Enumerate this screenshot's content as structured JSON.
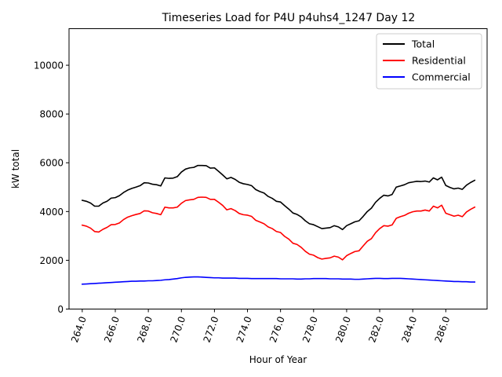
{
  "chart_data": {
    "type": "line",
    "title": "Timeseries Load for P4U p4uhs4_1247  Day 12",
    "xlabel": "Hour of Year",
    "ylabel": "kW total",
    "xlim": [
      263.2,
      288.5
    ],
    "ylim": [
      0,
      11500
    ],
    "x_ticks": [
      264,
      266,
      268,
      270,
      272,
      274,
      276,
      278,
      280,
      282,
      284,
      286
    ],
    "x_tick_labels": [
      "264.0",
      "266.0",
      "268.0",
      "270.0",
      "272.0",
      "274.0",
      "276.0",
      "278.0",
      "280.0",
      "282.0",
      "284.0",
      "286.0"
    ],
    "y_ticks": [
      0,
      2000,
      4000,
      6000,
      8000,
      10000
    ],
    "y_tick_labels": [
      "0",
      "2000",
      "4000",
      "6000",
      "8000",
      "10000"
    ],
    "legend_position": "top-right",
    "x_start": 264.0,
    "x_step": 0.25,
    "series": [
      {
        "name": "Total",
        "color": "#000000",
        "values": [
          4460,
          4420,
          4350,
          4220,
          4220,
          4350,
          4420,
          4550,
          4570,
          4650,
          4780,
          4880,
          4950,
          5000,
          5060,
          5180,
          5170,
          5120,
          5100,
          5050,
          5380,
          5360,
          5370,
          5430,
          5620,
          5740,
          5790,
          5810,
          5890,
          5890,
          5880,
          5780,
          5790,
          5650,
          5500,
          5340,
          5400,
          5320,
          5200,
          5140,
          5110,
          5060,
          4900,
          4820,
          4760,
          4620,
          4540,
          4420,
          4390,
          4240,
          4100,
          3940,
          3880,
          3780,
          3620,
          3500,
          3460,
          3380,
          3300,
          3320,
          3340,
          3420,
          3370,
          3260,
          3420,
          3500,
          3580,
          3620,
          3800,
          4000,
          4140,
          4380,
          4540,
          4670,
          4640,
          4700,
          5000,
          5050,
          5100,
          5180,
          5210,
          5240,
          5230,
          5250,
          5210,
          5380,
          5300,
          5410,
          5070,
          4990,
          4930,
          4960,
          4910,
          5080,
          5190,
          5280
        ]
      },
      {
        "name": "Residential",
        "color": "#ff0000",
        "values": [
          3440,
          3400,
          3320,
          3180,
          3160,
          3270,
          3350,
          3460,
          3470,
          3530,
          3670,
          3770,
          3830,
          3880,
          3920,
          4030,
          4020,
          3950,
          3920,
          3870,
          4180,
          4150,
          4150,
          4180,
          4340,
          4450,
          4480,
          4500,
          4580,
          4590,
          4580,
          4500,
          4500,
          4380,
          4250,
          4070,
          4120,
          4040,
          3920,
          3870,
          3850,
          3800,
          3640,
          3570,
          3500,
          3370,
          3300,
          3180,
          3140,
          2980,
          2870,
          2700,
          2650,
          2530,
          2370,
          2250,
          2210,
          2110,
          2050,
          2080,
          2100,
          2170,
          2130,
          2020,
          2190,
          2280,
          2360,
          2390,
          2590,
          2780,
          2890,
          3130,
          3300,
          3420,
          3400,
          3450,
          3720,
          3790,
          3840,
          3930,
          3990,
          4020,
          4020,
          4060,
          4020,
          4220,
          4150,
          4260,
          3930,
          3870,
          3810,
          3850,
          3790,
          3980,
          4090,
          4180
        ]
      },
      {
        "name": "Commercial",
        "color": "#0000ff",
        "values": [
          1020,
          1030,
          1040,
          1050,
          1060,
          1070,
          1080,
          1090,
          1100,
          1110,
          1120,
          1130,
          1140,
          1140,
          1150,
          1150,
          1160,
          1160,
          1170,
          1180,
          1200,
          1210,
          1230,
          1250,
          1280,
          1300,
          1310,
          1320,
          1320,
          1310,
          1300,
          1290,
          1280,
          1280,
          1270,
          1270,
          1270,
          1270,
          1260,
          1260,
          1260,
          1250,
          1250,
          1250,
          1250,
          1250,
          1250,
          1250,
          1240,
          1240,
          1240,
          1240,
          1230,
          1230,
          1240,
          1240,
          1250,
          1250,
          1250,
          1250,
          1240,
          1240,
          1240,
          1230,
          1230,
          1230,
          1220,
          1220,
          1230,
          1240,
          1250,
          1260,
          1260,
          1250,
          1250,
          1260,
          1260,
          1260,
          1250,
          1240,
          1230,
          1220,
          1210,
          1200,
          1190,
          1180,
          1170,
          1160,
          1150,
          1140,
          1130,
          1130,
          1120,
          1120,
          1110,
          1110
        ]
      }
    ]
  }
}
